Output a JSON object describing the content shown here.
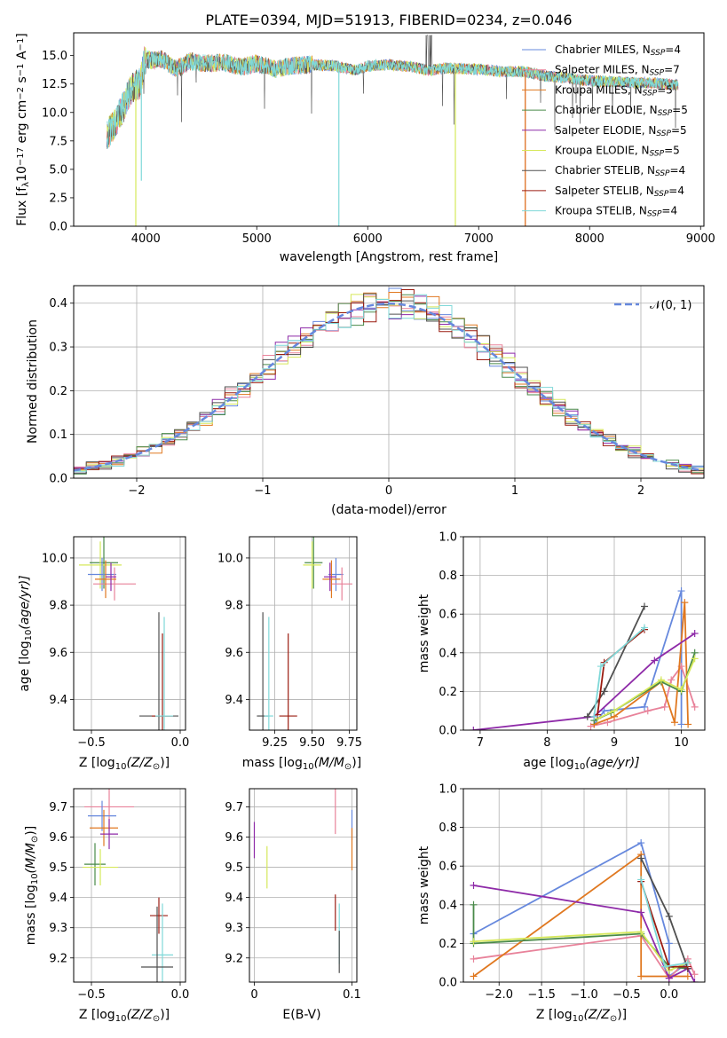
{
  "figure_title": "PLATE=0394, MJD=51913, FIBERID=0234, z=0.046",
  "colors": {
    "Chabrier MILES": "#6688dd",
    "Salpeter MILES": "#e8829a",
    "Kroupa MILES": "#e07820",
    "Chabrier ELODIE": "#4a8a4a",
    "Salpeter ELODIE": "#8e2aa8",
    "Kroupa ELODIE": "#d6e85a",
    "Chabrier STELIB": "#505050",
    "Salpeter STELIB": "#9b1c10",
    "Kroupa STELIB": "#7fd8d8",
    "gaussian": "#6688dd"
  },
  "chart_data": [
    {
      "id": "spectrum",
      "type": "line",
      "title": "PLATE=0394, MJD=51913, FIBERID=0234, z=0.046",
      "xlabel": "wavelength [Angstrom, rest frame]",
      "ylabel": "Flux [f",
      "ylabel_sub": "λ",
      "ylabel_rest": "10",
      "ylabel_exp1": "−17",
      "ylabel_mid": " erg cm",
      "ylabel_exp2": "−2",
      "ylabel_mid2": " s",
      "ylabel_exp3": "−1",
      "ylabel_mid3": " A",
      "ylabel_exp4": "−1",
      "ylabel_end": "]",
      "xlim": [
        3350,
        9030
      ],
      "ylim": [
        0,
        17
      ],
      "xticks": [
        4000,
        5000,
        6000,
        7000,
        8000,
        9000
      ],
      "yticks": [
        "0.0",
        "2.5",
        "5.0",
        "7.5",
        "10.0",
        "12.5",
        "15.0"
      ],
      "ytick_values": [
        0,
        2.5,
        5,
        7.5,
        10,
        12.5,
        15
      ],
      "data_range": [
        3650,
        8800
      ],
      "continuum": [
        [
          3650,
          8.0
        ],
        [
          3700,
          8.7
        ],
        [
          3760,
          9.8
        ],
        [
          3800,
          10.5
        ],
        [
          3850,
          11.8
        ],
        [
          3900,
          12.3
        ],
        [
          3950,
          12.6
        ],
        [
          3990,
          14.7
        ],
        [
          4050,
          14.6
        ],
        [
          4150,
          14.7
        ],
        [
          4250,
          13.9
        ],
        [
          4320,
          14.0
        ],
        [
          4400,
          14.5
        ],
        [
          4550,
          14.3
        ],
        [
          4700,
          14.4
        ],
        [
          4860,
          14.0
        ],
        [
          5000,
          14.3
        ],
        [
          5175,
          13.8
        ],
        [
          5300,
          14.1
        ],
        [
          5500,
          14.2
        ],
        [
          5700,
          14.1
        ],
        [
          5890,
          13.7
        ],
        [
          6000,
          14.1
        ],
        [
          6200,
          14.2
        ],
        [
          6400,
          14.0
        ],
        [
          6560,
          13.7
        ],
        [
          6700,
          13.9
        ],
        [
          7000,
          13.8
        ],
        [
          7200,
          13.6
        ],
        [
          7400,
          13.6
        ],
        [
          7600,
          13.2
        ],
        [
          7800,
          13.0
        ],
        [
          8000,
          12.8
        ],
        [
          8200,
          12.7
        ],
        [
          8400,
          12.6
        ],
        [
          8600,
          12.6
        ],
        [
          8800,
          12.4
        ]
      ],
      "series": [
        {
          "name": "Chabrier MILES, N",
          "sub": "SSP",
          "suffix": "=4",
          "key": "Chabrier MILES"
        },
        {
          "name": "Salpeter MILES, N",
          "sub": "SSP",
          "suffix": "=7",
          "key": "Salpeter MILES"
        },
        {
          "name": "Kroupa MILES, N",
          "sub": "SSP",
          "suffix": "=5",
          "key": "Kroupa MILES"
        },
        {
          "name": "Chabrier ELODIE, N",
          "sub": "SSP",
          "suffix": "=5",
          "key": "Chabrier ELODIE"
        },
        {
          "name": "Salpeter ELODIE, N",
          "sub": "SSP",
          "suffix": "=5",
          "key": "Salpeter ELODIE"
        },
        {
          "name": "Kroupa ELODIE, N",
          "sub": "SSP",
          "suffix": "=5",
          "key": "Kroupa ELODIE"
        },
        {
          "name": "Chabrier STELIB, N",
          "sub": "SSP",
          "suffix": "=4",
          "key": "Chabrier STELIB"
        },
        {
          "name": "Salpeter STELIB, N",
          "sub": "SSP",
          "suffix": "=4",
          "key": "Salpeter STELIB"
        },
        {
          "name": "Kroupa STELIB, N",
          "sub": "SSP",
          "suffix": "=4",
          "key": "Kroupa STELIB"
        }
      ],
      "dips": [
        {
          "x": 3910,
          "key": "Kroupa ELODIE",
          "y": 0
        },
        {
          "x": 3960,
          "key": "Kroupa STELIB",
          "y": 4.0
        },
        {
          "x": 5740,
          "key": "Kroupa STELIB",
          "y": 0
        },
        {
          "x": 6790,
          "key": "Kroupa ELODIE",
          "y": 0
        },
        {
          "x": 7420,
          "key": "Salpeter MILES",
          "y": 0
        },
        {
          "x": 7420,
          "key": "Kroupa MILES",
          "y": 0
        }
      ],
      "legend_position": "upper right"
    },
    {
      "id": "residuals",
      "type": "histogram",
      "xlabel": "(data-model)/error",
      "ylabel": "Normed distribution",
      "xlim": [
        -2.5,
        2.5
      ],
      "ylim": [
        0,
        0.44
      ],
      "xticks": [
        -2,
        -1,
        0,
        1,
        2
      ],
      "xtick_labels": [
        "−2",
        "−1",
        "0",
        "1",
        "2"
      ],
      "yticks": [
        0.0,
        0.1,
        0.2,
        0.3,
        0.4
      ],
      "ytick_labels": [
        "0.0",
        "0.1",
        "0.2",
        "0.3",
        "0.4"
      ],
      "grid": true,
      "bin_width": 0.1,
      "legend_label": "𝒩(0, 1)",
      "legend_position": "upper right"
    },
    {
      "id": "age_vs_Z",
      "type": "errorbar",
      "xlabel": "Z [log",
      "xlabel_sub": "10",
      "xlabel_mid": "(Z/Z",
      "xlabel_sub2": "⊙",
      "xlabel_end": ")]",
      "ylabel": "age  [log",
      "ylabel_sub": "10",
      "ylabel_end": "(age/yr)]",
      "xlim": [
        -0.6,
        0.03
      ],
      "ylim": [
        9.27,
        10.09
      ],
      "xticks": [
        -0.5,
        0.0
      ],
      "xtick_labels": [
        "−0.5",
        "0.0"
      ],
      "yticks": [
        9.4,
        9.6,
        9.8,
        10.0
      ],
      "ytick_labels": [
        "9.4",
        "9.6",
        "9.8",
        "10.0"
      ],
      "points": [
        {
          "key": "Chabrier ELODIE",
          "x": -0.43,
          "y": 9.98,
          "xe": 0.08,
          "ye": 0.11
        },
        {
          "key": "Kroupa ELODIE",
          "x": -0.45,
          "y": 9.97,
          "xe": 0.12,
          "ye": 0.1
        },
        {
          "key": "Chabrier MILES",
          "x": -0.44,
          "y": 9.93,
          "xe": 0.08,
          "ye": 0.07
        },
        {
          "key": "Salpeter MILES",
          "x": -0.37,
          "y": 9.89,
          "xe": 0.12,
          "ye": 0.07
        },
        {
          "key": "Kroupa MILES",
          "x": -0.42,
          "y": 9.91,
          "xe": 0.06,
          "ye": 0.08
        },
        {
          "key": "Salpeter ELODIE",
          "x": -0.39,
          "y": 9.92,
          "xe": 0.03,
          "ye": 0.06
        },
        {
          "key": "Chabrier STELIB",
          "x": -0.12,
          "y": 9.33,
          "xe": 0.11,
          "ye": 0.44
        },
        {
          "key": "Salpeter STELIB",
          "x": -0.1,
          "y": 9.33,
          "xe": 0.06,
          "ye": 0.35
        },
        {
          "key": "Kroupa STELIB",
          "x": -0.09,
          "y": 9.33,
          "xe": 0.05,
          "ye": 0.42
        }
      ]
    },
    {
      "id": "age_vs_mass",
      "type": "errorbar",
      "xlabel": "mass [log",
      "xlabel_sub": "10",
      "xlabel_end": "(M/M",
      "xlabel_sub2": "⊙",
      "xlabel_end2": ")]",
      "xlim": [
        9.08,
        9.8
      ],
      "ylim": [
        9.27,
        10.09
      ],
      "xticks": [
        9.25,
        9.5,
        9.75
      ],
      "xtick_labels": [
        "9.25",
        "9.50",
        "9.75"
      ],
      "yticks": [
        9.4,
        9.6,
        9.8,
        10.0
      ],
      "ytick_labels": [
        "9.4",
        "9.6",
        "9.8",
        "10.0"
      ],
      "points": [
        {
          "key": "Chabrier ELODIE",
          "x": 9.51,
          "y": 9.98,
          "xe": 0.06,
          "ye": 0.11
        },
        {
          "key": "Kroupa ELODIE",
          "x": 9.5,
          "y": 9.97,
          "xe": 0.06,
          "ye": 0.1
        },
        {
          "key": "Chabrier MILES",
          "x": 9.66,
          "y": 9.93,
          "xe": 0.05,
          "ye": 0.07
        },
        {
          "key": "Salpeter MILES",
          "x": 9.7,
          "y": 9.89,
          "xe": 0.07,
          "ye": 0.07
        },
        {
          "key": "Kroupa MILES",
          "x": 9.63,
          "y": 9.91,
          "xe": 0.06,
          "ye": 0.08
        },
        {
          "key": "Salpeter ELODIE",
          "x": 9.62,
          "y": 9.92,
          "xe": 0.04,
          "ye": 0.06
        },
        {
          "key": "Chabrier STELIB",
          "x": 9.17,
          "y": 9.33,
          "xe": 0.04,
          "ye": 0.44
        },
        {
          "key": "Salpeter STELIB",
          "x": 9.34,
          "y": 9.33,
          "xe": 0.06,
          "ye": 0.35
        },
        {
          "key": "Kroupa STELIB",
          "x": 9.21,
          "y": 9.33,
          "xe": 0.03,
          "ye": 0.42
        }
      ]
    },
    {
      "id": "weight_vs_age",
      "type": "line",
      "xlabel": "age  [log",
      "xlabel_sub": "10",
      "xlabel_end": "(age/yr)]",
      "ylabel": "mass weight",
      "xlim": [
        6.75,
        10.35
      ],
      "ylim": [
        0,
        1.0
      ],
      "xticks": [
        7,
        8,
        9,
        10
      ],
      "yticks": [
        0.0,
        0.2,
        0.4,
        0.6,
        0.8,
        1.0
      ],
      "ytick_labels": [
        "0.0",
        "0.2",
        "0.4",
        "0.6",
        "0.8",
        "1.0"
      ],
      "series": [
        {
          "key": "Chabrier MILES",
          "x": [
            8.7,
            8.85,
            9.45,
            10.0,
            10.0
          ],
          "y": [
            0.03,
            0.1,
            0.12,
            0.72,
            0.03
          ]
        },
        {
          "key": "Salpeter MILES",
          "x": [
            8.65,
            8.9,
            9.5,
            9.75,
            9.85,
            10.0,
            10.2
          ],
          "y": [
            0.02,
            0.04,
            0.1,
            0.12,
            0.26,
            0.33,
            0.12
          ]
        },
        {
          "key": "Kroupa MILES",
          "x": [
            8.7,
            9.0,
            9.7,
            9.9,
            10.05,
            10.1
          ],
          "y": [
            0.03,
            0.07,
            0.25,
            0.04,
            0.66,
            0.03
          ]
        },
        {
          "key": "Chabrier ELODIE",
          "x": [
            8.7,
            8.95,
            9.7,
            10.0,
            10.2
          ],
          "y": [
            0.05,
            0.09,
            0.25,
            0.2,
            0.4
          ]
        },
        {
          "key": "Salpeter ELODIE",
          "x": [
            6.9,
            8.7,
            9.6,
            10.2
          ],
          "y": [
            0.0,
            0.07,
            0.36,
            0.5
          ]
        },
        {
          "key": "Kroupa ELODIE",
          "x": [
            8.75,
            9.0,
            9.7,
            10.0,
            10.2
          ],
          "y": [
            0.06,
            0.1,
            0.26,
            0.21,
            0.37
          ]
        },
        {
          "key": "Chabrier STELIB",
          "x": [
            8.6,
            8.85,
            9.45
          ],
          "y": [
            0.07,
            0.2,
            0.64
          ]
        },
        {
          "key": "Salpeter STELIB",
          "x": [
            8.75,
            8.85,
            9.45
          ],
          "y": [
            0.08,
            0.35,
            0.52
          ]
        },
        {
          "key": "Kroupa STELIB",
          "x": [
            8.7,
            8.8,
            9.45
          ],
          "y": [
            0.07,
            0.33,
            0.53
          ]
        }
      ]
    },
    {
      "id": "mass_vs_Z",
      "type": "errorbar",
      "xlabel": "Z [log",
      "xlabel_sub": "10",
      "xlabel_mid": "(Z/Z",
      "xlabel_sub2": "⊙",
      "xlabel_end": ")]",
      "ylabel": "mass [log",
      "ylabel_sub": "10",
      "ylabel_end": "(M/M",
      "ylabel_sub2": "⊙",
      "ylabel_end2": ")]",
      "xlim": [
        -0.6,
        0.03
      ],
      "ylim": [
        9.12,
        9.76
      ],
      "xticks": [
        -0.5,
        0.0
      ],
      "xtick_labels": [
        "−0.5",
        "0.0"
      ],
      "yticks": [
        9.2,
        9.3,
        9.4,
        9.5,
        9.6,
        9.7
      ],
      "ytick_labels": [
        "9.2",
        "9.3",
        "9.4",
        "9.5",
        "9.6",
        "9.7"
      ],
      "points": [
        {
          "key": "Salpeter MILES",
          "x": -0.4,
          "y": 9.7,
          "xe": 0.14,
          "ye": 0.08
        },
        {
          "key": "Chabrier MILES",
          "x": -0.44,
          "y": 9.67,
          "xe": 0.08,
          "ye": 0.05
        },
        {
          "key": "Kroupa MILES",
          "x": -0.43,
          "y": 9.63,
          "xe": 0.08,
          "ye": 0.06
        },
        {
          "key": "Salpeter ELODIE",
          "x": -0.4,
          "y": 9.61,
          "xe": 0.05,
          "ye": 0.05
        },
        {
          "key": "Chabrier ELODIE",
          "x": -0.48,
          "y": 9.51,
          "xe": 0.06,
          "ye": 0.07
        },
        {
          "key": "Kroupa ELODIE",
          "x": -0.45,
          "y": 9.5,
          "xe": 0.1,
          "ye": 0.06
        },
        {
          "key": "Salpeter STELIB",
          "x": -0.12,
          "y": 9.34,
          "xe": 0.05,
          "ye": 0.06
        },
        {
          "key": "Kroupa STELIB",
          "x": -0.1,
          "y": 9.21,
          "xe": 0.06,
          "ye": 0.17
        },
        {
          "key": "Chabrier STELIB",
          "x": -0.13,
          "y": 9.17,
          "xe": 0.09,
          "ye": 0.2
        }
      ]
    },
    {
      "id": "mass_vs_ebv",
      "type": "errorbar",
      "xlabel": "E(B-V)",
      "xlim": [
        -0.005,
        0.105
      ],
      "ylim": [
        9.12,
        9.76
      ],
      "xticks": [
        0.0,
        0.1
      ],
      "xtick_labels": [
        "0",
        "0.1"
      ],
      "yticks": [
        9.2,
        9.3,
        9.4,
        9.5,
        9.6,
        9.7
      ],
      "ytick_labels": [
        "9.2",
        "9.3",
        "9.4",
        "9.5",
        "9.6",
        "9.7"
      ],
      "points": [
        {
          "key": "Salpeter MILES",
          "x": 0.083,
          "y": 9.69,
          "xe": 0,
          "ye": 0.08
        },
        {
          "key": "Chabrier MILES",
          "x": 0.1,
          "y": 9.64,
          "xe": 0,
          "ye": 0.05
        },
        {
          "key": "Kroupa MILES",
          "x": 0.1,
          "y": 9.56,
          "xe": 0,
          "ye": 0.07
        },
        {
          "key": "Salpeter ELODIE",
          "x": 0.0,
          "y": 9.59,
          "xe": 0,
          "ye": 0.06
        },
        {
          "key": "Kroupa ELODIE",
          "x": 0.013,
          "y": 9.5,
          "xe": 0,
          "ye": 0.07
        },
        {
          "key": "Salpeter STELIB",
          "x": 0.083,
          "y": 9.35,
          "xe": 0,
          "ye": 0.06
        },
        {
          "key": "Kroupa STELIB",
          "x": 0.087,
          "y": 9.28,
          "xe": 0,
          "ye": 0.1
        },
        {
          "key": "Chabrier STELIB",
          "x": 0.087,
          "y": 9.22,
          "xe": 0,
          "ye": 0.07
        }
      ]
    },
    {
      "id": "weight_vs_Z",
      "type": "line",
      "xlabel": "Z [log",
      "xlabel_sub": "10",
      "xlabel_mid": "(Z/Z",
      "xlabel_sub2": "⊙",
      "xlabel_end": ")]",
      "ylabel": "mass weight",
      "xlim": [
        -2.42,
        0.42
      ],
      "ylim": [
        0,
        1.0
      ],
      "xticks": [
        -2.0,
        -1.5,
        -1.0,
        -0.5,
        0.0
      ],
      "xtick_labels": [
        "−2.0",
        "−1.5",
        "−1.0",
        "−0.5",
        "0.0"
      ],
      "yticks": [
        0.0,
        0.2,
        0.4,
        0.6,
        0.8,
        1.0
      ],
      "ytick_labels": [
        "0.0",
        "0.2",
        "0.4",
        "0.6",
        "0.8",
        "1.0"
      ],
      "series": [
        {
          "key": "Chabrier MILES",
          "x": [
            -2.3,
            -0.33,
            0.0,
            0.0,
            0.22
          ],
          "y": [
            0.25,
            0.72,
            0.2,
            0.03,
            0.1
          ]
        },
        {
          "key": "Salpeter MILES",
          "x": [
            -2.3,
            -0.33,
            0.0,
            0.22,
            0.3
          ],
          "y": [
            0.12,
            0.24,
            0.02,
            0.12,
            0.04
          ]
        },
        {
          "key": "Kroupa MILES",
          "x": [
            -2.3,
            -0.33,
            -0.33,
            0.0,
            0.22
          ],
          "y": [
            0.03,
            0.66,
            0.03,
            0.03,
            0.03
          ]
        },
        {
          "key": "Chabrier ELODIE",
          "x": [
            -2.3,
            -2.3,
            -0.33,
            0.0,
            0.22
          ],
          "y": [
            0.4,
            0.2,
            0.25,
            0.08,
            0.07
          ]
        },
        {
          "key": "Salpeter ELODIE",
          "x": [
            -2.3,
            -0.33,
            0.0,
            0.22,
            0.3
          ],
          "y": [
            0.5,
            0.36,
            0.02,
            0.07,
            0.0
          ]
        },
        {
          "key": "Kroupa ELODIE",
          "x": [
            -2.3,
            -0.33,
            0.0,
            0.22
          ],
          "y": [
            0.21,
            0.26,
            0.06,
            0.1
          ]
        },
        {
          "key": "Chabrier STELIB",
          "x": [
            -0.33,
            0.0,
            0.22
          ],
          "y": [
            0.64,
            0.34,
            0.07
          ]
        },
        {
          "key": "Salpeter STELIB",
          "x": [
            -0.33,
            0.0,
            0.22
          ],
          "y": [
            0.52,
            0.08,
            0.08
          ]
        },
        {
          "key": "Kroupa STELIB",
          "x": [
            -0.33,
            -0.05,
            0.22
          ],
          "y": [
            0.53,
            0.08,
            0.1
          ]
        }
      ]
    }
  ]
}
